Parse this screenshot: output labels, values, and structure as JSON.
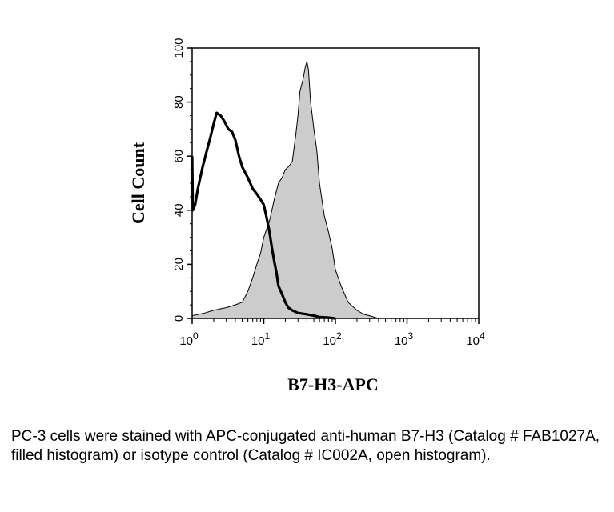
{
  "chart_data": {
    "type": "area",
    "xlabel": "B7-H3-APC",
    "ylabel": "Cell Count",
    "xscale": "log",
    "xlim": [
      1,
      10000
    ],
    "ylim": [
      0,
      100
    ],
    "xticks": [
      {
        "base": "10",
        "exp": "0"
      },
      {
        "base": "10",
        "exp": "1"
      },
      {
        "base": "10",
        "exp": "2"
      },
      {
        "base": "10",
        "exp": "3"
      },
      {
        "base": "10",
        "exp": "4"
      }
    ],
    "yticks": [
      "0",
      "20",
      "40",
      "60",
      "80",
      "100"
    ],
    "series": [
      {
        "style": "filled",
        "x": [
          1,
          1.5,
          2,
          3,
          4,
          5,
          6,
          7,
          8,
          9,
          10,
          12,
          14,
          16,
          18,
          20,
          22,
          25,
          28,
          30,
          32,
          35,
          38,
          40,
          42,
          45,
          50,
          55,
          60,
          70,
          80,
          90,
          100,
          120,
          150,
          200,
          250,
          300,
          400
        ],
        "y": [
          1,
          2,
          3,
          4,
          5,
          6,
          10,
          15,
          20,
          24,
          30,
          36,
          44,
          50,
          52,
          55,
          56,
          58,
          68,
          75,
          84,
          88,
          93,
          95,
          92,
          80,
          70,
          62,
          50,
          38,
          32,
          26,
          18,
          12,
          6,
          3,
          1.5,
          1,
          0
        ]
      },
      {
        "style": "outline",
        "x": [
          1,
          1.02,
          1.1,
          1.2,
          1.4,
          1.6,
          1.8,
          2,
          2.2,
          2.5,
          2.8,
          3.2,
          3.6,
          4,
          4.5,
          5,
          6,
          7,
          8,
          9,
          10,
          11,
          12,
          13,
          14,
          15,
          16,
          18,
          20,
          22,
          25,
          30,
          40,
          50,
          60,
          80,
          100
        ],
        "y": [
          60,
          40,
          42,
          48,
          56,
          62,
          67,
          72,
          76,
          75,
          73,
          70,
          69,
          66,
          60,
          56,
          52,
          48,
          46,
          44,
          42,
          37,
          32,
          26,
          21,
          17,
          12,
          9,
          6,
          4,
          3,
          2,
          1.5,
          1,
          0.5,
          0.3,
          0
        ]
      }
    ]
  },
  "caption": "PC-3 cells were stained with APC-conjugated anti-human B7-H3 (Catalog # FAB1027A, filled histogram) or isotype control (Catalog # IC002A, open histogram)."
}
